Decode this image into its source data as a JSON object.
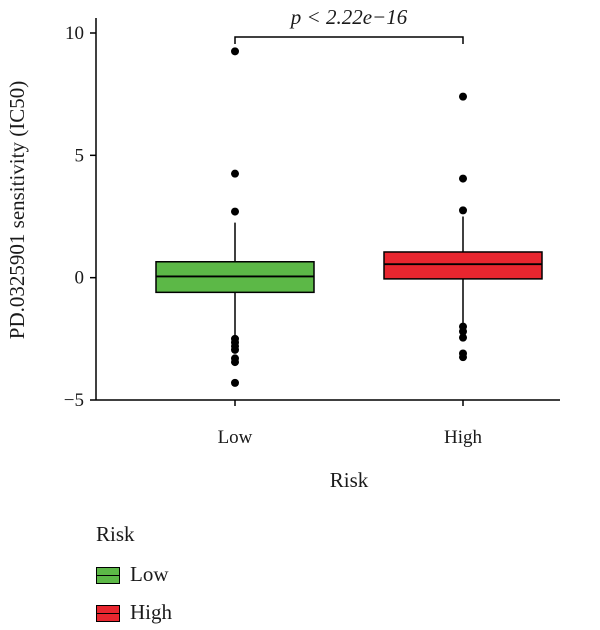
{
  "chart_data": {
    "type": "box",
    "title": "",
    "xlabel": "Risk",
    "ylabel": "PD.0325901 sensitivity (IC50)",
    "ylim": [
      -5,
      10
    ],
    "yticks": [
      "10",
      "5",
      "0",
      "−5"
    ],
    "ytick_values": [
      10,
      5,
      0,
      -5
    ],
    "categories": [
      "Low",
      "High"
    ],
    "series": [
      {
        "name": "Low",
        "color": "#5cb847",
        "q1": -0.6,
        "median": 0.05,
        "q3": 0.65,
        "whisker_low": -2.35,
        "whisker_high": 2.25,
        "outliers": [
          9.25,
          4.25,
          2.7,
          -2.5,
          -2.65,
          -2.8,
          -2.95,
          -3.3,
          -3.45,
          -4.3
        ]
      },
      {
        "name": "High",
        "color": "#e8262f",
        "q1": -0.05,
        "median": 0.55,
        "q3": 1.05,
        "whisker_low": -1.85,
        "whisker_high": 2.5,
        "outliers": [
          7.4,
          4.05,
          2.75,
          -2.0,
          -2.2,
          -2.45,
          -3.1,
          -3.25
        ]
      }
    ],
    "annotation": {
      "p_prefix": "p",
      "p_text": " < 2.22e−16"
    },
    "legend": {
      "title": "Risk",
      "placement": "bottom-left",
      "items": [
        {
          "label": "Low",
          "color": "#5cb847"
        },
        {
          "label": "High",
          "color": "#e8262f"
        }
      ]
    },
    "grid": false
  }
}
